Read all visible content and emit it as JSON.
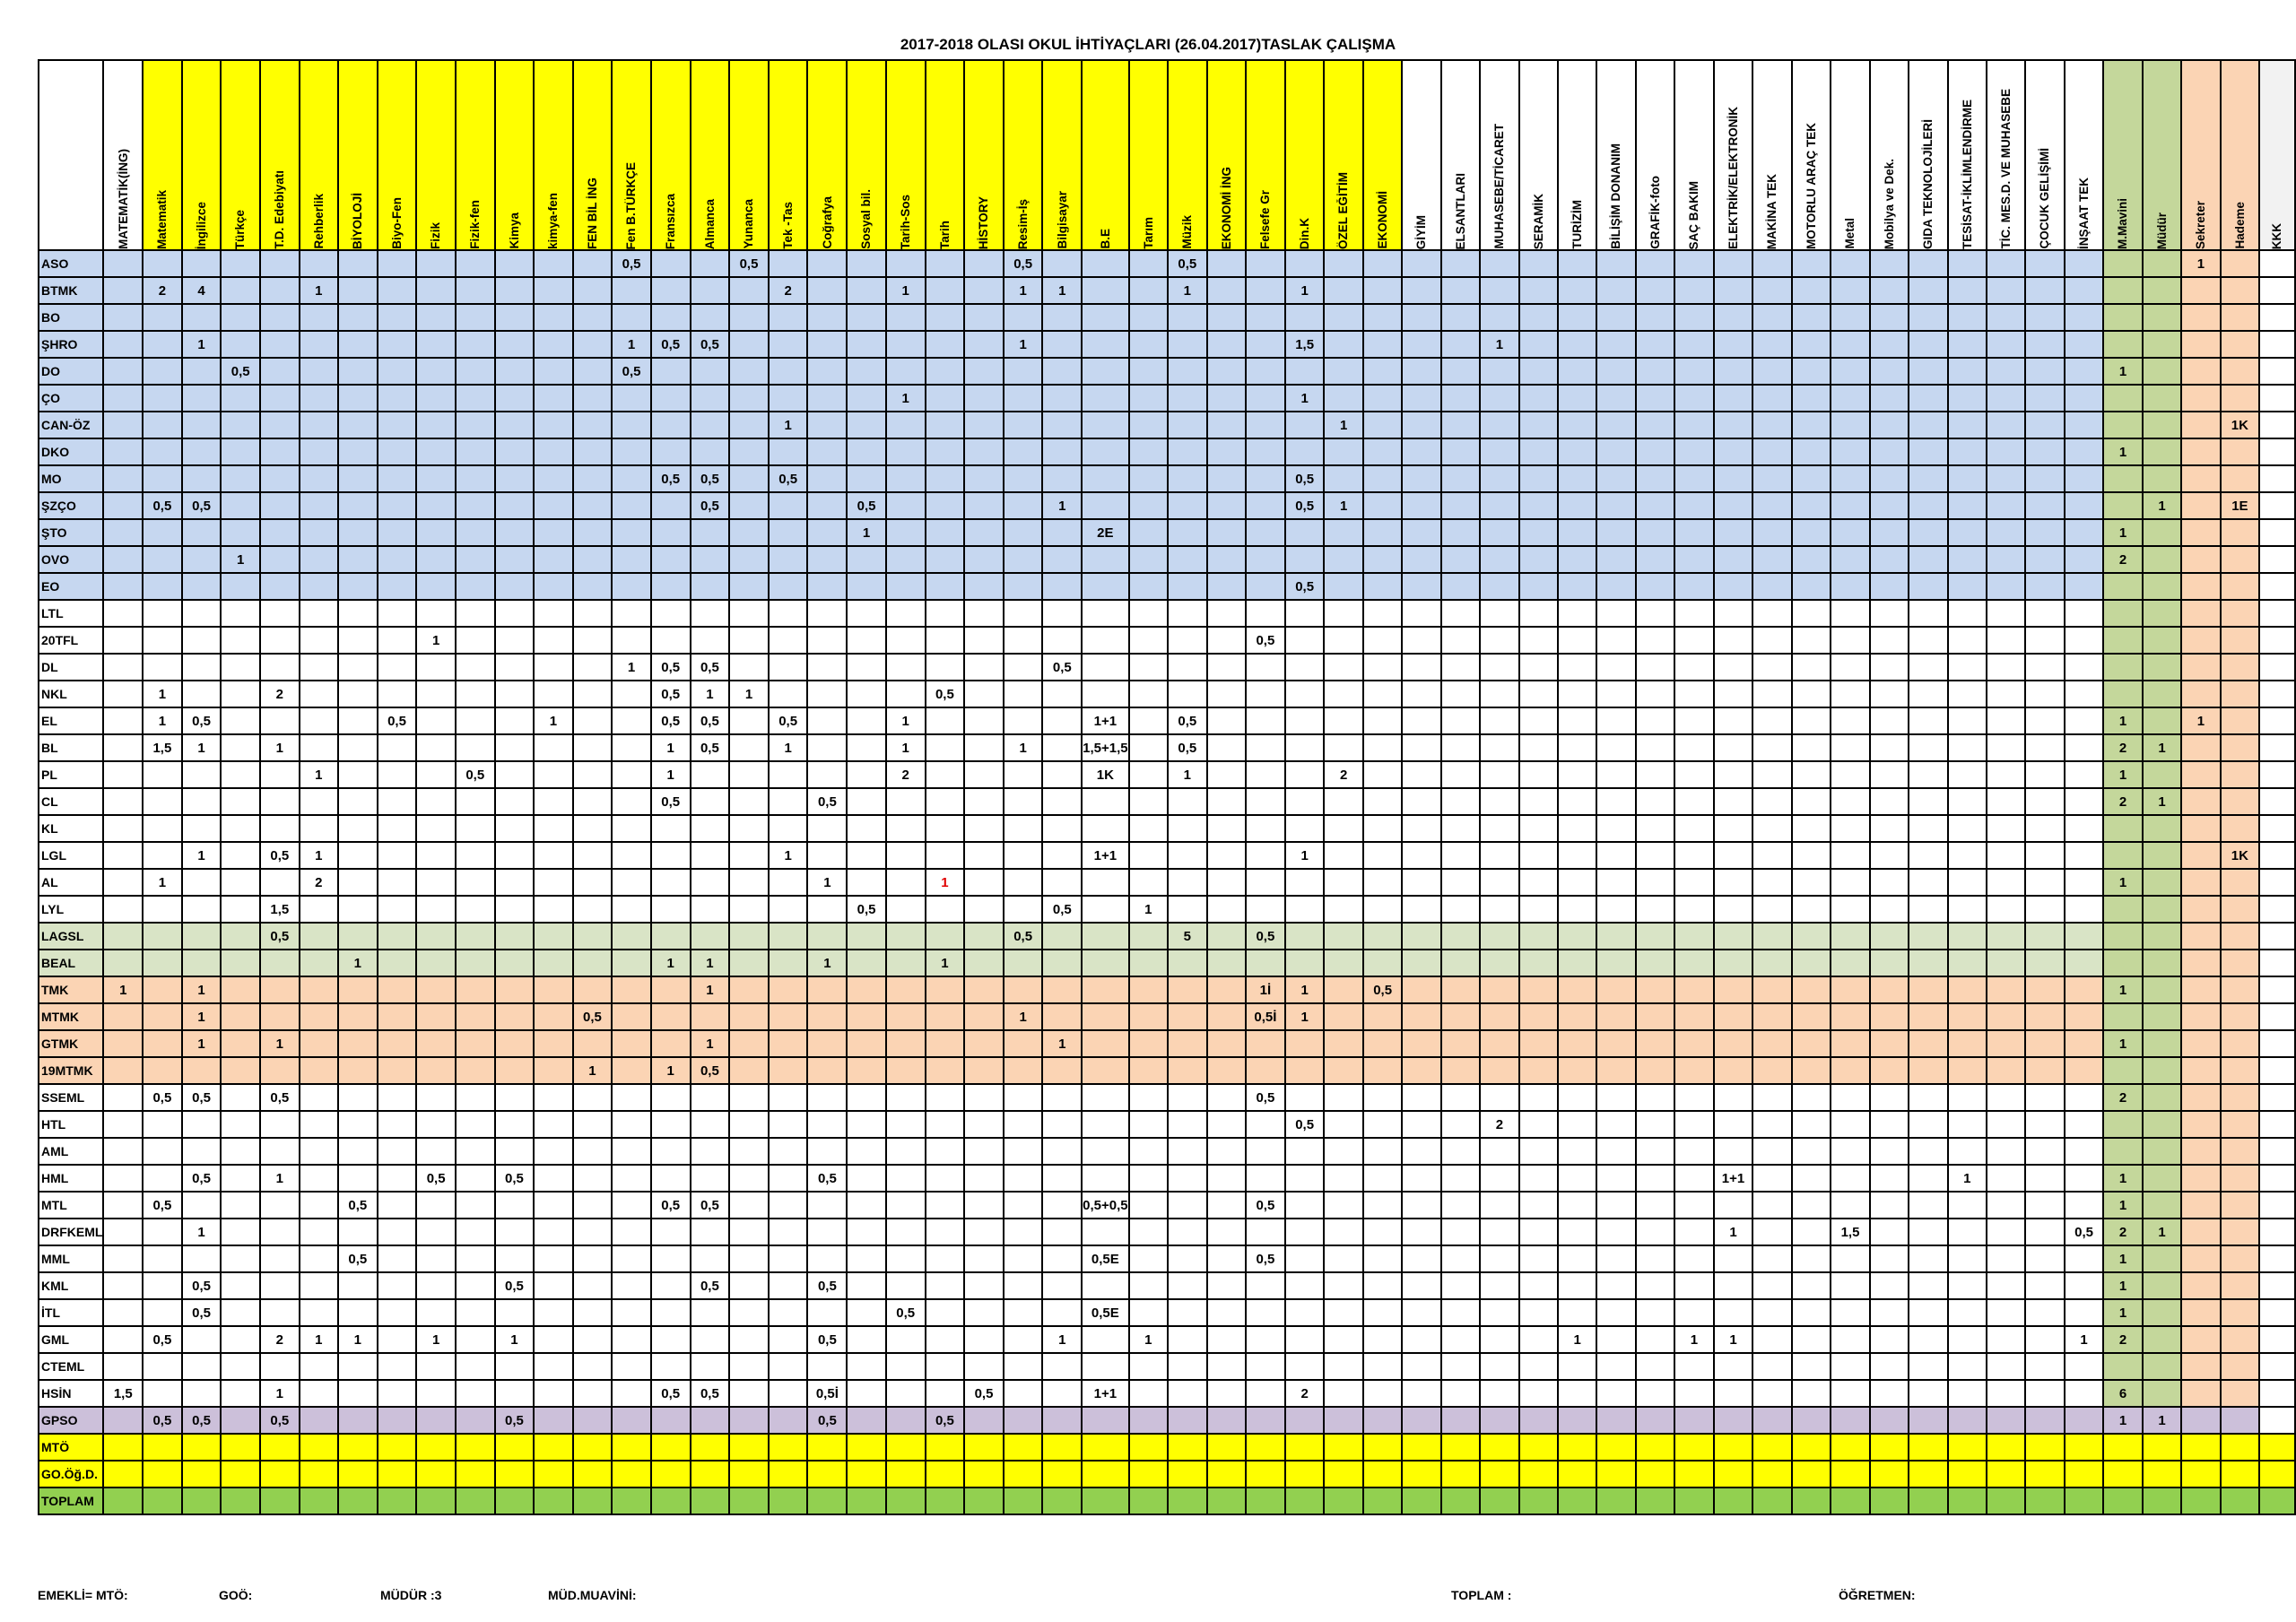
{
  "title": "2017-2018 OLASI OKUL İHTİYAÇLARI (26.04.2017)TASLAK ÇALIŞMA",
  "colors": {
    "yellow": "#ffff00",
    "blue": "#c6d7f0",
    "green_light": "#d9e4c6",
    "orange": "#fbd4b4",
    "purple": "#ccc0da",
    "olive": "#c4d79b",
    "green": "#92d050",
    "gray": "#f2f2f2"
  },
  "columns": [
    "MATEMATİK(İNG)",
    "Matematik",
    "İngilizce",
    "Türkçe",
    "T.D. Edebiyatı",
    "Rehberlik",
    "BİYOLOJİ",
    "Biyo-Fen",
    "Fizik",
    "Fizik-fen",
    "Kimya",
    "kimya-fen",
    "FEN BİL İNG",
    "Fen B.TÜRKÇE",
    "Fransızca",
    "Almanca",
    "Yunanca",
    "Tek -Tas",
    "Coğrafya",
    "Sosyal bil.",
    "Tarih-Sos",
    "Tarih",
    "HİSTORY",
    "Resim-İş",
    "Bilgisayar",
    "B.E",
    "Tarım",
    "Müzik",
    "EKONOMİ İNG",
    "Felsefe Gr",
    "Din.K",
    "ÖZEL EĞİTİM",
    "EKONOMİ",
    "GİYİM",
    "ELSANTLARI",
    "MUHASEBE/TİCARET",
    "SERAMİK",
    "TURİZİM",
    "BİLİŞİM DONANIM",
    "GRAFİK-foto",
    "SAÇ BAKIM",
    "ELEKTRİK/ELEKTRONİK",
    "MAKİNA TEK",
    "MOTORLU ARAÇ TEK",
    "Metal",
    "Mobilya ve Dek.",
    "GIDA TEKNOLOJİLERİ",
    "TESİSAT-İKLİMLENDİRME",
    "TİC. MES.D. VE MUHASEBE",
    "ÇOCUK GELİŞİMİ",
    "İNŞAAT TEK",
    "M.Mavini",
    "Müdür",
    "Sekreter",
    "Hademe",
    "KKK"
  ],
  "rows": [
    {
      "name": "ASO",
      "group": "blue",
      "cells": {
        "13": "0,5",
        "16": "0,5",
        "23": "0,5",
        "27": "0,5",
        "53": "1"
      }
    },
    {
      "name": "BTMK",
      "group": "blue",
      "cells": {
        "1": "2",
        "2": "4",
        "5": "1",
        "17": "2",
        "20": "1",
        "23": "1",
        "24": "1",
        "27": "1",
        "30": "1"
      }
    },
    {
      "name": "BO",
      "group": "blue",
      "cells": {}
    },
    {
      "name": "ŞHRO",
      "group": "blue",
      "cells": {
        "2": "1",
        "13": "1",
        "14": "0,5",
        "15": "0,5",
        "23": "1",
        "30": "1,5",
        "35": "1"
      }
    },
    {
      "name": "DO",
      "group": "blue",
      "cells": {
        "3": "0,5",
        "13": "0,5",
        "51": "1"
      }
    },
    {
      "name": "ÇO",
      "group": "blue",
      "cells": {
        "20": "1",
        "30": "1"
      }
    },
    {
      "name": "CAN-ÖZ",
      "group": "blue",
      "cells": {
        "17": "1",
        "31": "1",
        "54": "1K"
      }
    },
    {
      "name": "DKO",
      "group": "blue",
      "cells": {
        "51": "1"
      }
    },
    {
      "name": "MO",
      "group": "blue",
      "cells": {
        "14": "0,5",
        "15": "0,5",
        "17": "0,5",
        "30": "0,5"
      }
    },
    {
      "name": "ŞZÇO",
      "group": "blue",
      "cells": {
        "1": "0,5",
        "2": "0,5",
        "15": "0,5",
        "19": "0,5",
        "24": "1",
        "30": "0,5",
        "31": "1",
        "52": "1",
        "54": "1E"
      }
    },
    {
      "name": "ŞTO",
      "group": "blue",
      "cells": {
        "19": "1",
        "25": "2E",
        "51": "1"
      }
    },
    {
      "name": "OVO",
      "group": "blue",
      "cells": {
        "3": "1",
        "51": "2"
      }
    },
    {
      "name": "EO",
      "group": "blue",
      "cells": {
        "30": "0,5"
      }
    },
    {
      "name": "LTL",
      "group": "white",
      "cells": {}
    },
    {
      "name": "20TFL",
      "group": "white",
      "cells": {
        "8": "1",
        "29": "0,5"
      }
    },
    {
      "name": "DL",
      "group": "white",
      "cells": {
        "13": "1",
        "14": "0,5",
        "15": "0,5",
        "24": "0,5"
      }
    },
    {
      "name": "NKL",
      "group": "white",
      "cells": {
        "1": "1",
        "4": "2",
        "14": "0,5",
        "15": "1",
        "16": "1",
        "21": "0,5"
      }
    },
    {
      "name": "EL",
      "group": "white",
      "cells": {
        "1": "1",
        "2": "0,5",
        "7": "0,5",
        "11": "1",
        "14": "0,5",
        "15": "0,5",
        "17": "0,5",
        "20": "1",
        "25": "1+1",
        "27": "0,5",
        "51": "1",
        "53": "1"
      }
    },
    {
      "name": "BL",
      "group": "white",
      "cells": {
        "1": "1,5",
        "2": "1",
        "4": "1",
        "14": "1",
        "15": "0,5",
        "17": "1",
        "20": "1",
        "23": "1",
        "25": "1,5+1,5",
        "27": "0,5",
        "51": "2",
        "52": "1"
      }
    },
    {
      "name": "PL",
      "group": "white",
      "cells": {
        "5": "1",
        "9": "0,5",
        "14": "1",
        "20": "2",
        "25": "1K",
        "27": "1",
        "31": "2",
        "51": "1"
      }
    },
    {
      "name": "CL",
      "group": "white",
      "cells": {
        "14": "0,5",
        "18": "0,5",
        "51": "2",
        "52": "1"
      }
    },
    {
      "name": "KL",
      "group": "white",
      "cells": {}
    },
    {
      "name": "LGL",
      "group": "white",
      "cells": {
        "2": "1",
        "4": "0,5",
        "5": "1",
        "17": "1",
        "25": "1+1",
        "30": "1",
        "54": "1K"
      }
    },
    {
      "name": "AL",
      "group": "white",
      "cells": {
        "1": "1",
        "5": "2",
        "18": "1",
        "21": "1",
        "51": "1"
      }
    },
    {
      "name": "LYL",
      "group": "white",
      "cells": {
        "4": "1,5",
        "19": "0,5",
        "24": "0,5",
        "26": "1"
      }
    },
    {
      "name": "LAGSL",
      "group": "green",
      "cells": {
        "4": "0,5",
        "23": "0,5",
        "27": "5",
        "29": "0,5"
      }
    },
    {
      "name": "BEAL",
      "group": "green",
      "cells": {
        "6": "1",
        "14": "1",
        "15": "1",
        "18": "1",
        "21": "1"
      }
    },
    {
      "name": "TMK",
      "group": "orange",
      "cells": {
        "0": "1",
        "2": "1",
        "15": "1",
        "29": "1İ",
        "30": "1",
        "32": "0,5",
        "51": "1"
      }
    },
    {
      "name": "MTMK",
      "group": "orange",
      "cells": {
        "2": "1",
        "12": "0,5",
        "23": "1",
        "29": "0,5İ",
        "30": "1"
      }
    },
    {
      "name": "GTMK",
      "group": "orange",
      "cells": {
        "2": "1",
        "4": "1",
        "15": "1",
        "24": "1",
        "51": "1"
      }
    },
    {
      "name": "19MTMK",
      "group": "orange",
      "cells": {
        "12": "1",
        "14": "1",
        "15": "0,5"
      }
    },
    {
      "name": "SSEML",
      "group": "white",
      "cells": {
        "1": "0,5",
        "2": "0,5",
        "4": "0,5",
        "29": "0,5",
        "51": "2"
      }
    },
    {
      "name": "HTL",
      "group": "white",
      "cells": {
        "30": "0,5",
        "35": "2"
      }
    },
    {
      "name": "AML",
      "group": "white",
      "cells": {}
    },
    {
      "name": "HML",
      "group": "white",
      "cells": {
        "2": "0,5",
        "4": "1",
        "8": "0,5",
        "10": "0,5",
        "18": "0,5",
        "41": "1+1",
        "47": "1",
        "51": "1"
      }
    },
    {
      "name": "MTL",
      "group": "white",
      "cells": {
        "1": "0,5",
        "6": "0,5",
        "14": "0,5",
        "15": "0,5",
        "25": "0,5+0,5",
        "29": "0,5",
        "51": "1"
      }
    },
    {
      "name": "DRFKEML",
      "group": "white",
      "cells": {
        "2": "1",
        "41": "1",
        "44": "1,5",
        "50": "0,5",
        "51": "2",
        "52": "1"
      }
    },
    {
      "name": "MML",
      "group": "white",
      "cells": {
        "6": "0,5",
        "25": "0,5E",
        "29": "0,5",
        "51": "1"
      }
    },
    {
      "name": "KML",
      "group": "white",
      "cells": {
        "2": "0,5",
        "10": "0,5",
        "15": "0,5",
        "18": "0,5",
        "51": "1"
      }
    },
    {
      "name": "İTL",
      "group": "white",
      "cells": {
        "2": "0,5",
        "20": "0,5",
        "25": "0,5E",
        "51": "1"
      }
    },
    {
      "name": "GML",
      "group": "white",
      "cells": {
        "1": "0,5",
        "4": "2",
        "5": "1",
        "6": "1",
        "8": "1",
        "10": "1",
        "18": "0,5",
        "24": "1",
        "26": "1",
        "37": "1",
        "40": "1",
        "41": "1",
        "50": "1",
        "51": "2"
      }
    },
    {
      "name": "CTEML",
      "group": "white",
      "cells": {}
    },
    {
      "name": "HSİN",
      "group": "white",
      "cells": {
        "0": "1,5",
        "4": "1",
        "14": "0,5",
        "15": "0,5",
        "18": "0,5İ",
        "22": "0,5",
        "25": "1+1",
        "30": "2",
        "51": "6"
      }
    },
    {
      "name": "GPSO",
      "group": "purple",
      "cells": {
        "1": "0,5",
        "2": "0,5",
        "4": "0,5",
        "10": "0,5",
        "18": "0,5",
        "21": "0,5",
        "51": "1",
        "52": "1"
      }
    },
    {
      "name": "MTÖ",
      "group": "yellowrow",
      "cells": {}
    },
    {
      "name": "GO.Öğ.D.",
      "group": "yellowrow",
      "cells": {}
    },
    {
      "name": "TOPLAM",
      "group": "greenrow",
      "cells": {}
    }
  ],
  "footer": {
    "emekli": "EMEKLİ= MTÖ:",
    "goo": "GOÖ:",
    "mudur": "MÜDÜR :3",
    "mud_muavini": "MÜD.MUAVİNİ:",
    "toplam": "TOPLAM :",
    "ogretmen": "ÖĞRETMEN:"
  }
}
